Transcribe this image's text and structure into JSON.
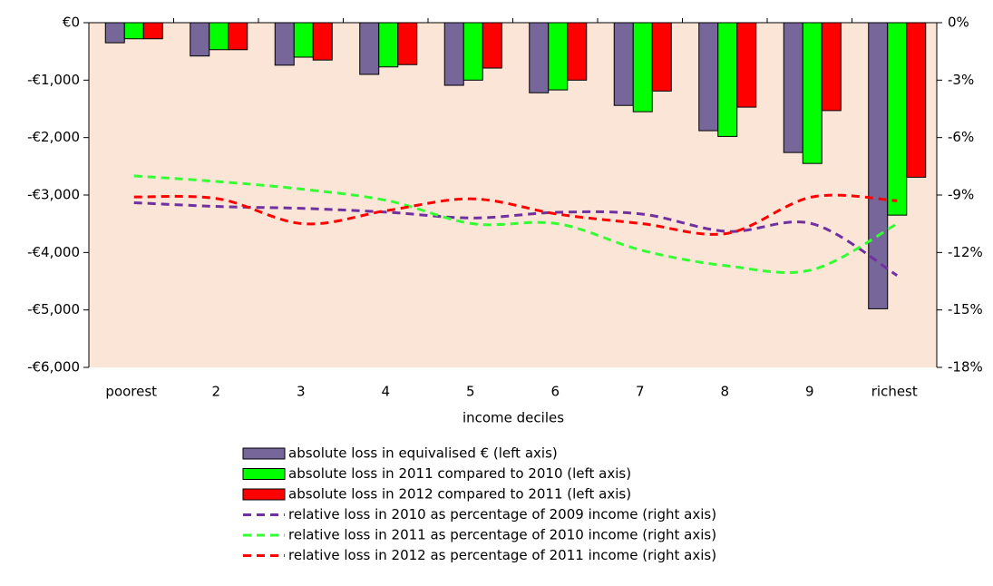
{
  "chart_data": {
    "type": "bar",
    "x_label": "income deciles",
    "categories": [
      "poorest",
      "2",
      "3",
      "4",
      "5",
      "6",
      "7",
      "8",
      "9",
      "richest"
    ],
    "ylim": [
      -6000,
      0
    ],
    "yticks": [
      {
        "value": 0,
        "label": "€0"
      },
      {
        "value": -1000,
        "label": "-€1,000"
      },
      {
        "value": -2000,
        "label": "-€2,000"
      },
      {
        "value": -3000,
        "label": "-€3,000"
      },
      {
        "value": -4000,
        "label": "-€4,000"
      },
      {
        "value": -5000,
        "label": "-€5,000"
      },
      {
        "value": -6000,
        "label": "-€6,000"
      }
    ],
    "y2lim": [
      -18,
      0
    ],
    "y2ticks": [
      {
        "value": 0,
        "label": "0%"
      },
      {
        "value": -3,
        "label": "-3%"
      },
      {
        "value": -6,
        "label": "-6%"
      },
      {
        "value": -9,
        "label": "-9%"
      },
      {
        "value": -12,
        "label": "-12%"
      },
      {
        "value": -15,
        "label": "-15%"
      },
      {
        "value": -18,
        "label": "-18%"
      }
    ],
    "background": "#fbe5d6",
    "series": [
      {
        "name": "absolute loss in equivalised € (left axis)",
        "type": "bar",
        "color": "#76669a",
        "values": [
          -350,
          -580,
          -740,
          -900,
          -1090,
          -1220,
          -1440,
          -1880,
          -2260,
          -4980
        ]
      },
      {
        "name": "absolute loss in 2011 compared to 2010 (left axis)",
        "type": "bar",
        "color": "#00ff00",
        "values": [
          -280,
          -470,
          -600,
          -770,
          -1000,
          -1170,
          -1550,
          -1980,
          -2450,
          -3350
        ]
      },
      {
        "name": "absolute loss in 2012 compared to 2011 (left axis)",
        "type": "bar",
        "color": "#ff0000",
        "values": [
          -280,
          -470,
          -650,
          -730,
          -790,
          -1000,
          -1190,
          -1470,
          -1530,
          -2690
        ]
      },
      {
        "name": "relative loss in 2010 as percentage of 2009 income  (right axis)",
        "type": "line",
        "axis": "y2",
        "color": "#7030a0",
        "values": [
          -9.4,
          -9.6,
          -9.7,
          -9.9,
          -10.2,
          -9.9,
          -10.0,
          -10.9,
          -10.5,
          -13.2
        ]
      },
      {
        "name": "relative loss in 2011 as percentage of 2010 income (right axis)",
        "type": "line",
        "axis": "y2",
        "color": "#33ff33",
        "values": [
          -8.0,
          -8.3,
          -8.7,
          -9.3,
          -10.5,
          -10.5,
          -11.9,
          -12.7,
          -12.9,
          -10.5
        ]
      },
      {
        "name": "relative loss in 2012 as percentage of 2011 income (right axis)",
        "type": "line",
        "axis": "y2",
        "color": "#ff0000",
        "values": [
          -9.1,
          -9.2,
          -10.5,
          -9.8,
          -9.2,
          -10.0,
          -10.5,
          -11.0,
          -9.1,
          -9.3
        ]
      }
    ]
  }
}
